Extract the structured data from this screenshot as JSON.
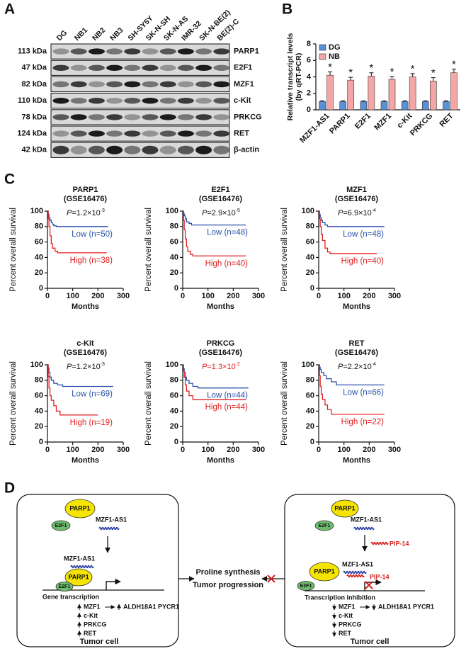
{
  "panel_labels": [
    "A",
    "B",
    "C",
    "D"
  ],
  "western_blot": {
    "lanes": [
      "DG",
      "NB1",
      "NB2",
      "NB3",
      "SH-SY5Y",
      "SK-N-SH",
      "SK-N-AS",
      "IMR-32",
      "SK-N-BE(2)",
      "BE(2)-C"
    ],
    "rows": [
      {
        "size": "113 kDa",
        "protein": "PARP1"
      },
      {
        "size": "47 kDa",
        "protein": "E2F1"
      },
      {
        "size": "82 kDa",
        "protein": "MZF1"
      },
      {
        "size": "110 kDa",
        "protein": "c-Kit"
      },
      {
        "size": "78 kDa",
        "protein": "PRKCG"
      },
      {
        "size": "124 kDa",
        "protein": "RET"
      },
      {
        "size": "42 kDa",
        "protein": "β-actin"
      }
    ]
  },
  "chart_data": [
    {
      "type": "bar",
      "y_label": [
        "Relative transcript levels",
        "(by qRT-PCR)"
      ],
      "categories": [
        "MZF1-AS1",
        "PARP1",
        "E2F1",
        "MZF1",
        "c-Kit",
        "PRKCG",
        "RET"
      ],
      "series": [
        {
          "name": "DG",
          "color": "#5b8fd6",
          "values": [
            1,
            1,
            1,
            1,
            1,
            1,
            1
          ],
          "errors": [
            0.1,
            0.1,
            0.1,
            0.1,
            0.1,
            0.1,
            0.1
          ]
        },
        {
          "name": "NB",
          "color": "#f4a6a6",
          "values": [
            4.2,
            3.6,
            4.1,
            3.7,
            4.0,
            3.5,
            4.5
          ],
          "errors": [
            0.4,
            0.35,
            0.4,
            0.35,
            0.4,
            0.4,
            0.45
          ],
          "annotations": [
            "*",
            "*",
            "*",
            "*",
            "*",
            "*",
            "*"
          ]
        }
      ],
      "ylim": [
        0,
        8
      ],
      "yticks": [
        0,
        2,
        4,
        6,
        8
      ],
      "legend": "top-left"
    },
    {
      "type": "line",
      "drawstyle": "steps-post",
      "title": [
        "PARP1",
        "(GSE16476)"
      ],
      "p_value": {
        "symbol": "P",
        "text": "=1.2×10",
        "exponent": "-3",
        "color": "#111111"
      },
      "x_label": "Months",
      "y_label": "Percent overall survival",
      "series": [
        {
          "name": "Low (n=50)",
          "color": "#2b4fa8",
          "x": [
            0,
            3,
            6,
            10,
            15,
            20,
            25,
            35,
            240
          ],
          "values": [
            100,
            96,
            92,
            88,
            85,
            83,
            81,
            80,
            80
          ]
        },
        {
          "name": "High (n=38)",
          "color": "#e02020",
          "x": [
            0,
            3,
            6,
            10,
            15,
            20,
            30,
            40,
            235
          ],
          "values": [
            100,
            90,
            80,
            68,
            58,
            52,
            48,
            46,
            46
          ]
        }
      ],
      "xlim": [
        0,
        300
      ],
      "xticks": [
        0,
        100,
        200,
        300
      ],
      "ylim": [
        0,
        100
      ],
      "yticks": [
        0,
        20,
        40,
        60,
        80,
        100
      ]
    },
    {
      "type": "line",
      "drawstyle": "steps-post",
      "title": [
        "E2F1",
        "(GSE16476)"
      ],
      "p_value": {
        "symbol": "P",
        "text": "=2.9×10",
        "exponent": "-5",
        "color": "#111111"
      },
      "x_label": "Months",
      "y_label": "Percent overall survival",
      "series": [
        {
          "name": "Low (n=48)",
          "color": "#2b4fa8",
          "x": [
            0,
            3,
            6,
            10,
            15,
            25,
            35,
            250
          ],
          "values": [
            100,
            97,
            94,
            90,
            86,
            84,
            82,
            82
          ]
        },
        {
          "name": "High (n=40)",
          "color": "#e02020",
          "x": [
            0,
            3,
            6,
            10,
            15,
            20,
            30,
            40,
            250
          ],
          "values": [
            100,
            88,
            76,
            64,
            54,
            48,
            44,
            42,
            42
          ]
        }
      ],
      "xlim": [
        0,
        300
      ],
      "xticks": [
        0,
        100,
        200,
        300
      ],
      "ylim": [
        0,
        100
      ],
      "yticks": [
        0,
        20,
        40,
        60,
        80,
        100
      ]
    },
    {
      "type": "line",
      "drawstyle": "steps-post",
      "title": [
        "MZF1",
        "(GSE16476)"
      ],
      "p_value": {
        "symbol": "P",
        "text": "=6.9×10",
        "exponent": "-4",
        "color": "#111111"
      },
      "x_label": "Months",
      "y_label": "Percent overall survival",
      "series": [
        {
          "name": "Low (n=48)",
          "color": "#2b4fa8",
          "x": [
            0,
            3,
            6,
            10,
            15,
            25,
            35,
            260
          ],
          "values": [
            100,
            96,
            92,
            88,
            85,
            82,
            80,
            80
          ]
        },
        {
          "name": "High (n=40)",
          "color": "#e02020",
          "x": [
            0,
            3,
            6,
            10,
            15,
            25,
            35,
            45,
            230
          ],
          "values": [
            100,
            90,
            80,
            70,
            62,
            52,
            47,
            45,
            45
          ]
        }
      ],
      "xlim": [
        0,
        300
      ],
      "xticks": [
        0,
        100,
        200,
        300
      ],
      "ylim": [
        0,
        100
      ],
      "yticks": [
        0,
        20,
        40,
        60,
        80,
        100
      ]
    },
    {
      "type": "line",
      "drawstyle": "steps-post",
      "title": [
        "c-Kit",
        "(GSE16476)"
      ],
      "p_value": {
        "symbol": "P",
        "text": "=1.2×10",
        "exponent": "-3",
        "color": "#111111"
      },
      "x_label": "Months",
      "y_label": "Percent overall survival",
      "series": [
        {
          "name": "Low (n=69)",
          "color": "#2b4fa8",
          "x": [
            0,
            3,
            6,
            10,
            15,
            25,
            40,
            60,
            260
          ],
          "values": [
            100,
            96,
            90,
            84,
            80,
            76,
            74,
            72,
            72
          ]
        },
        {
          "name": "High (n=19)",
          "color": "#e02020",
          "x": [
            0,
            3,
            6,
            10,
            15,
            25,
            35,
            50,
            200
          ],
          "values": [
            100,
            85,
            70,
            60,
            54,
            47,
            40,
            35,
            35
          ]
        }
      ],
      "xlim": [
        0,
        300
      ],
      "xticks": [
        0,
        100,
        200,
        300
      ],
      "ylim": [
        0,
        100
      ],
      "yticks": [
        0,
        20,
        40,
        60,
        80,
        100
      ]
    },
    {
      "type": "line",
      "drawstyle": "steps-post",
      "title": [
        "PRKCG",
        "(GSE16476)"
      ],
      "p_value": {
        "symbol": "P",
        "text": "=1.3×10",
        "exponent": "-2",
        "color": "#e02020"
      },
      "x_label": "Months",
      "y_label": "Percent overall survival",
      "series": [
        {
          "name": "Low (n=44)",
          "color": "#2b4fa8",
          "x": [
            0,
            3,
            6,
            10,
            15,
            25,
            40,
            60,
            260
          ],
          "values": [
            100,
            95,
            90,
            84,
            80,
            76,
            72,
            70,
            70
          ]
        },
        {
          "name": "High (n=44)",
          "color": "#e02020",
          "x": [
            0,
            3,
            6,
            10,
            15,
            25,
            40,
            250
          ],
          "values": [
            100,
            92,
            84,
            74,
            66,
            60,
            55,
            55
          ]
        }
      ],
      "xlim": [
        0,
        300
      ],
      "xticks": [
        0,
        100,
        200,
        300
      ],
      "ylim": [
        0,
        100
      ],
      "yticks": [
        0,
        20,
        40,
        60,
        80,
        100
      ]
    },
    {
      "type": "line",
      "drawstyle": "steps-post",
      "title": [
        "RET",
        "(GSE16476)"
      ],
      "p_value": {
        "symbol": "P",
        "text": "=2.2×10",
        "exponent": "-4",
        "color": "#111111"
      },
      "x_label": "Months",
      "y_label": "Percent overall survival",
      "series": [
        {
          "name": "Low (n=66)",
          "color": "#2b4fa8",
          "x": [
            0,
            3,
            6,
            10,
            20,
            30,
            50,
            70,
            260
          ],
          "values": [
            100,
            97,
            94,
            90,
            86,
            82,
            78,
            74,
            74
          ]
        },
        {
          "name": "High (n=22)",
          "color": "#e02020",
          "x": [
            0,
            3,
            6,
            10,
            15,
            25,
            35,
            50,
            260
          ],
          "values": [
            100,
            86,
            72,
            62,
            55,
            48,
            42,
            36,
            36
          ]
        }
      ],
      "xlim": [
        0,
        300
      ],
      "xticks": [
        0,
        100,
        200,
        300
      ],
      "ylim": [
        0,
        100
      ],
      "yticks": [
        0,
        20,
        40,
        60,
        80,
        100
      ]
    }
  ],
  "diagram": {
    "left": {
      "parp1": "PARP1",
      "e2f1": "E2F1",
      "lnc": "MZF1-AS1",
      "complex_lnc": "MZF1-AS1",
      "complex_parp1": "PARP1",
      "complex_e2f1": "E2F1",
      "process": "Gene transcription",
      "targets": [
        "MZF1",
        "c-Kit",
        "PRKCG",
        "RET"
      ],
      "downstream": "ALDH18A1  PYCR1",
      "cell": "Tumor cell"
    },
    "middle": {
      "outcomes": [
        "Proline synthesis",
        "Tumor progression"
      ]
    },
    "right": {
      "parp1": "PARP1",
      "e2f1": "E2F1",
      "lnc": "MZF1-AS1",
      "pip": "PIP-14",
      "complex_parp1": "PARP1",
      "complex_lnc": "MZF1-AS1",
      "complex_pip": "PIP-14",
      "complex_e2f1": "E2F1",
      "process": "Transcription inhibition",
      "targets": [
        "MZF1",
        "c-Kit",
        "PRKCG",
        "RET"
      ],
      "downstream": "ALDH18A1  PYCR1",
      "cell": "Tumor cell"
    }
  }
}
